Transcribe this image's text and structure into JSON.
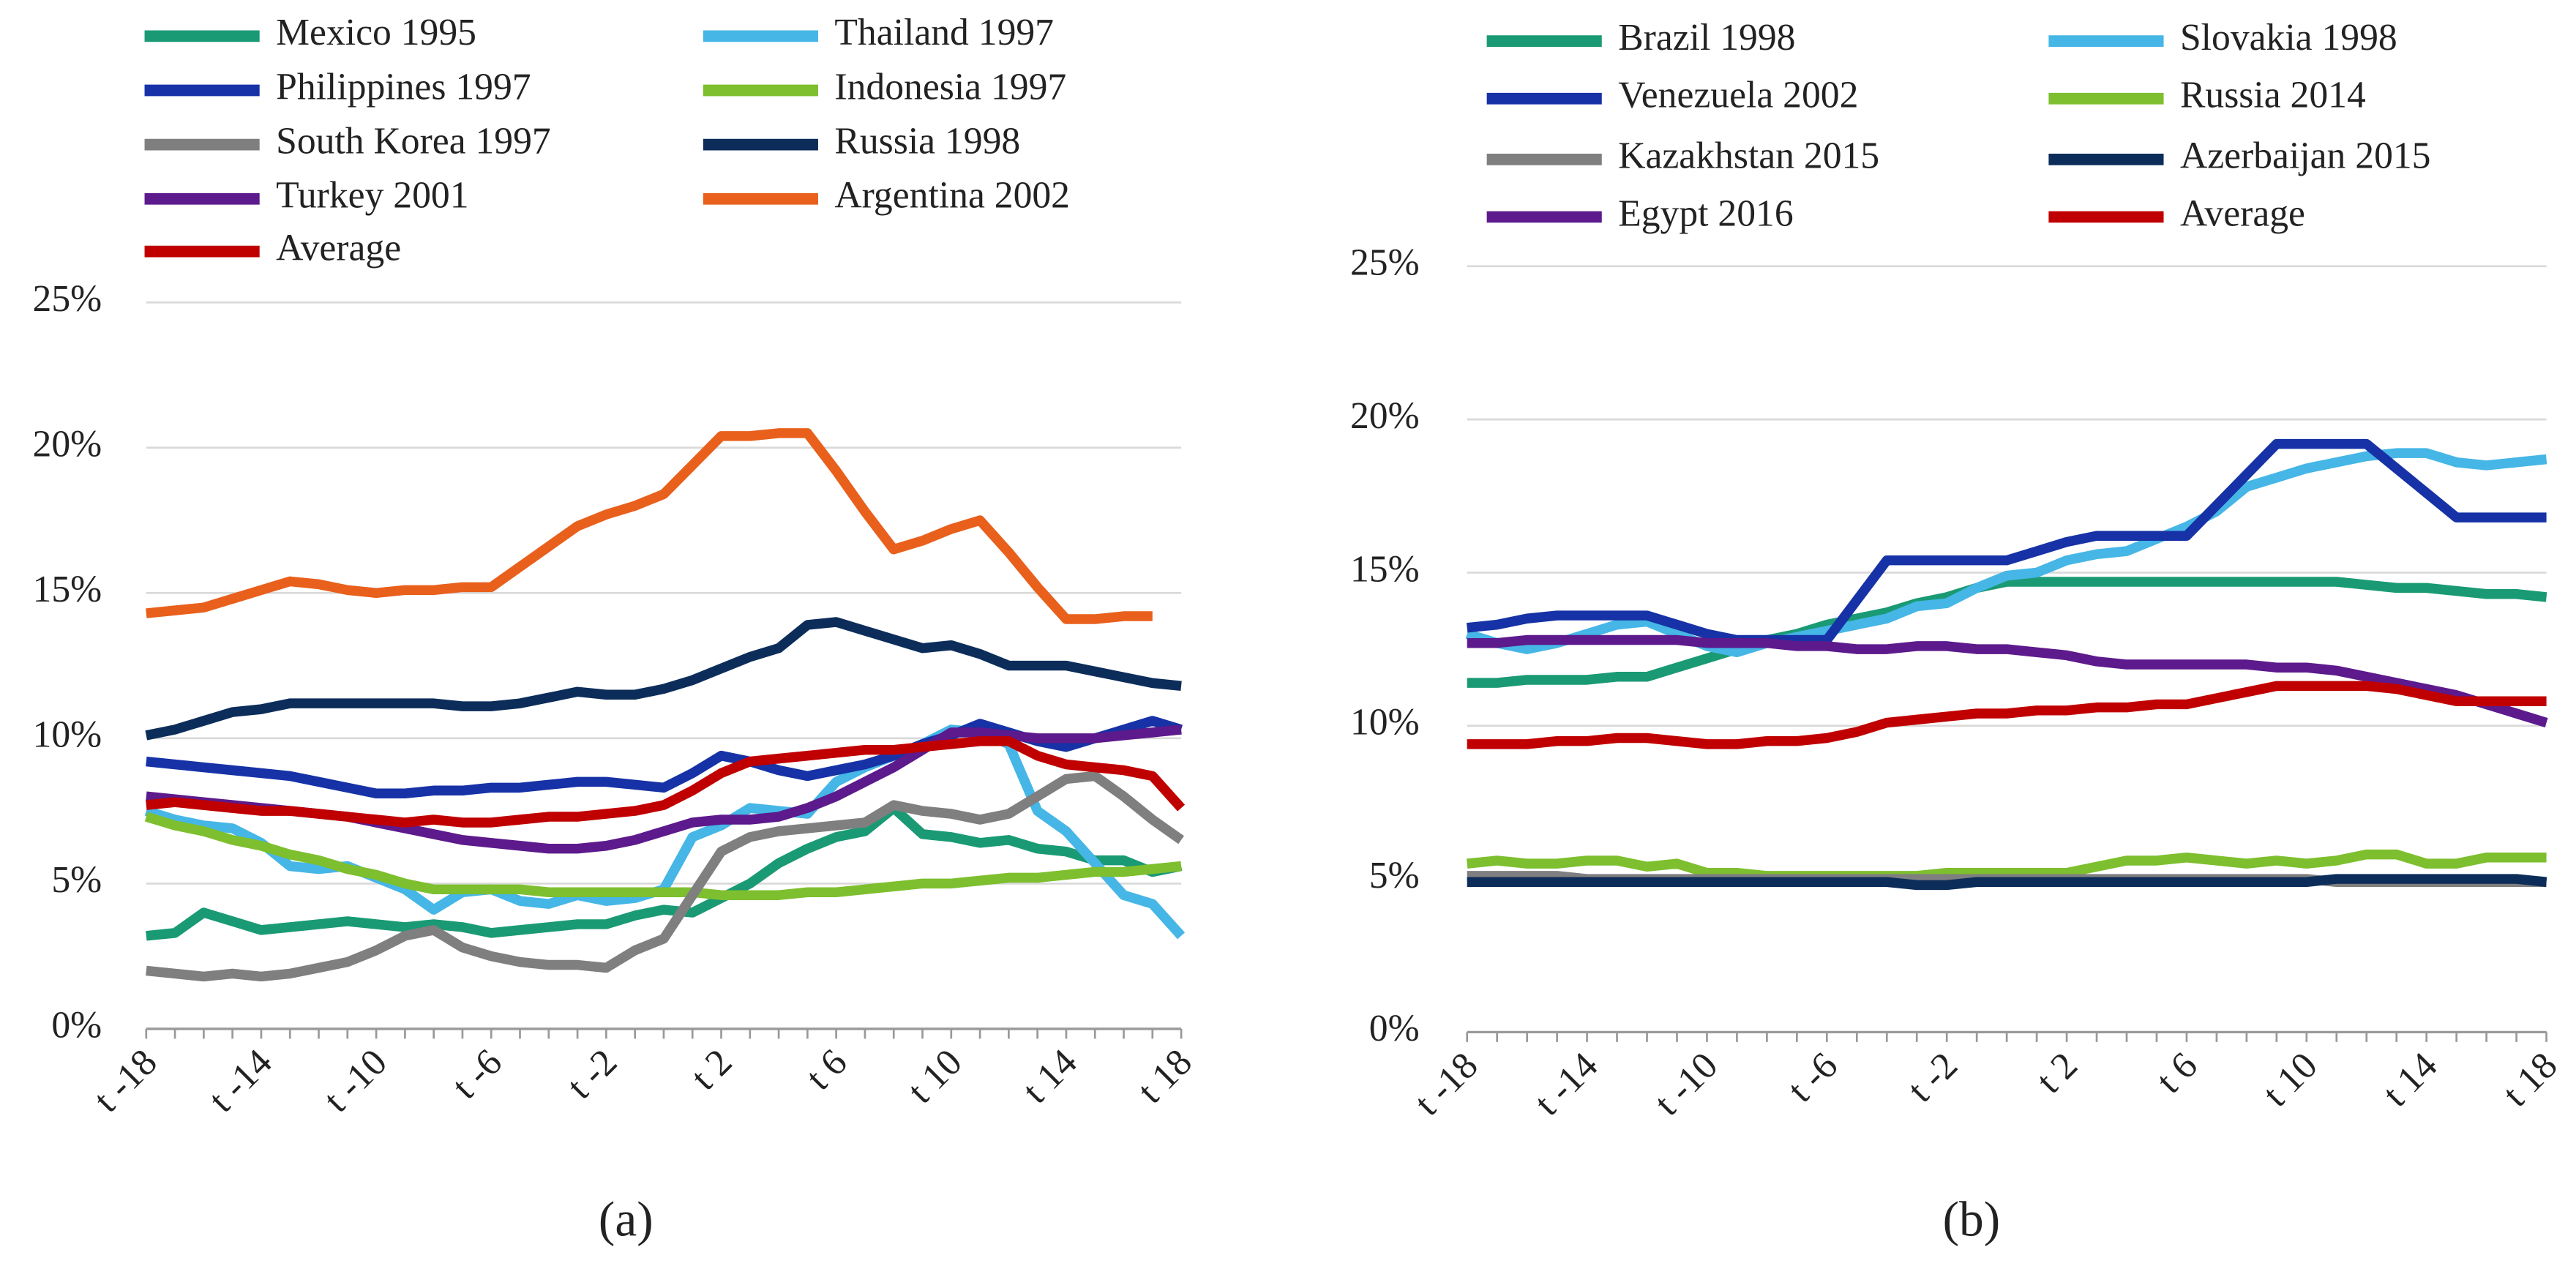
{
  "chart_data": [
    {
      "type": "line",
      "label": "(a)",
      "categories": [
        "t -18",
        null,
        null,
        null,
        "t -14",
        null,
        null,
        null,
        "t -10",
        null,
        null,
        null,
        "t -6",
        null,
        null,
        null,
        "t -2",
        null,
        null,
        null,
        "t 2",
        null,
        null,
        null,
        "t 6",
        null,
        null,
        null,
        "t 10",
        null,
        null,
        null,
        "t 14",
        null,
        null,
        null,
        "t 18"
      ],
      "ylim": [
        0,
        25
      ],
      "yticks": [
        {
          "value": 0,
          "label": "0%"
        },
        {
          "value": 5,
          "label": "5%"
        },
        {
          "value": 10,
          "label": "10%"
        },
        {
          "value": 15,
          "label": "15%"
        },
        {
          "value": 20,
          "label": "20%"
        },
        {
          "value": 25,
          "label": "25%"
        }
      ],
      "grid": true,
      "series": [
        {
          "name": "Mexico 1995",
          "color": "#1a9a74",
          "values": [
            3.2,
            3.3,
            4.0,
            3.7,
            3.4,
            3.5,
            3.6,
            3.7,
            3.6,
            3.5,
            3.6,
            3.5,
            3.3,
            3.4,
            3.5,
            3.6,
            3.6,
            3.9,
            4.1,
            4.0,
            4.5,
            5.0,
            5.7,
            6.2,
            6.6,
            6.8,
            7.6,
            6.7,
            6.6,
            6.4,
            6.5,
            6.2,
            6.1,
            5.8,
            5.8,
            5.4,
            5.6
          ]
        },
        {
          "name": "Thailand 1997",
          "color": "#45b6e6",
          "values": [
            7.5,
            7.2,
            7.0,
            6.9,
            6.4,
            5.6,
            5.5,
            5.6,
            5.2,
            4.8,
            4.1,
            4.7,
            4.8,
            4.4,
            4.3,
            4.6,
            4.4,
            4.5,
            4.8,
            6.6,
            7.0,
            7.6,
            7.5,
            7.4,
            8.5,
            9.0,
            9.4,
            9.8,
            10.3,
            10.2,
            9.8,
            7.5,
            6.8,
            5.7,
            4.6,
            4.3,
            3.2
          ]
        },
        {
          "name": "Philippines 1997",
          "color": "#1632a6",
          "values": [
            9.2,
            9.1,
            9.0,
            8.9,
            8.8,
            8.7,
            8.5,
            8.3,
            8.1,
            8.1,
            8.2,
            8.2,
            8.3,
            8.3,
            8.4,
            8.5,
            8.5,
            8.4,
            8.3,
            8.8,
            9.4,
            9.2,
            8.9,
            8.7,
            8.9,
            9.1,
            9.4,
            9.8,
            10.1,
            10.5,
            10.2,
            9.9,
            9.7,
            10.0,
            10.3,
            10.6,
            10.3
          ]
        },
        {
          "name": "Indonesia 1997",
          "color": "#7dbf2e",
          "values": [
            7.3,
            7.0,
            6.8,
            6.5,
            6.3,
            6.0,
            5.8,
            5.5,
            5.3,
            5.0,
            4.8,
            4.8,
            4.8,
            4.8,
            4.7,
            4.7,
            4.7,
            4.7,
            4.7,
            4.7,
            4.6,
            4.6,
            4.6,
            4.7,
            4.7,
            4.8,
            4.9,
            5.0,
            5.0,
            5.1,
            5.2,
            5.2,
            5.3,
            5.4,
            5.4,
            5.5,
            5.6
          ]
        },
        {
          "name": "South Korea 1997",
          "color": "#7f7f7f",
          "values": [
            2.0,
            1.9,
            1.8,
            1.9,
            1.8,
            1.9,
            2.1,
            2.3,
            2.7,
            3.2,
            3.4,
            2.8,
            2.5,
            2.3,
            2.2,
            2.2,
            2.1,
            2.7,
            3.1,
            4.6,
            6.1,
            6.6,
            6.8,
            6.9,
            7.0,
            7.1,
            7.7,
            7.5,
            7.4,
            7.2,
            7.4,
            8.0,
            8.6,
            8.7,
            8.0,
            7.2,
            6.5
          ]
        },
        {
          "name": "Russia 1998",
          "color": "#0c2d5a",
          "values": [
            10.1,
            10.3,
            10.6,
            10.9,
            11.0,
            11.2,
            11.2,
            11.2,
            11.2,
            11.2,
            11.2,
            11.1,
            11.1,
            11.2,
            11.4,
            11.6,
            11.5,
            11.5,
            11.7,
            12.0,
            12.4,
            12.8,
            13.1,
            13.9,
            14.0,
            13.7,
            13.4,
            13.1,
            13.2,
            12.9,
            12.5,
            12.5,
            12.5,
            12.3,
            12.1,
            11.9,
            11.8
          ]
        },
        {
          "name": "Turkey 2001",
          "color": "#5c1a8c",
          "values": [
            8.0,
            7.9,
            7.8,
            7.7,
            7.6,
            7.5,
            7.4,
            7.3,
            7.1,
            6.9,
            6.7,
            6.5,
            6.4,
            6.3,
            6.2,
            6.2,
            6.3,
            6.5,
            6.8,
            7.1,
            7.2,
            7.2,
            7.3,
            7.6,
            8.0,
            8.5,
            9.0,
            9.6,
            10.2,
            10.2,
            10.1,
            10.0,
            10.0,
            10.0,
            10.1,
            10.2,
            10.3
          ]
        },
        {
          "name": "Argentina 2002",
          "color": "#e8601c",
          "values": [
            14.3,
            14.4,
            14.5,
            14.8,
            15.1,
            15.4,
            15.3,
            15.1,
            15.0,
            15.1,
            15.1,
            15.2,
            15.2,
            15.9,
            16.6,
            17.3,
            17.7,
            18.0,
            18.4,
            19.4,
            20.4,
            20.4,
            20.5,
            20.5,
            19.2,
            17.8,
            16.5,
            16.8,
            17.2,
            17.5,
            16.4,
            15.2,
            14.1,
            14.1,
            14.2,
            14.2,
            null
          ]
        },
        {
          "name": "Average",
          "color": "#c00000",
          "values": [
            7.7,
            7.8,
            7.7,
            7.6,
            7.5,
            7.5,
            7.4,
            7.3,
            7.2,
            7.1,
            7.2,
            7.1,
            7.1,
            7.2,
            7.3,
            7.3,
            7.4,
            7.5,
            7.7,
            8.2,
            8.8,
            9.2,
            9.3,
            9.4,
            9.5,
            9.6,
            9.6,
            9.7,
            9.8,
            9.9,
            9.9,
            9.4,
            9.1,
            9.0,
            8.9,
            8.7,
            7.6
          ]
        }
      ]
    },
    {
      "type": "line",
      "label": "(b)",
      "categories": [
        "t -18",
        null,
        null,
        null,
        "t -14",
        null,
        null,
        null,
        "t -10",
        null,
        null,
        null,
        "t -6",
        null,
        null,
        null,
        "t -2",
        null,
        null,
        null,
        "t 2",
        null,
        null,
        null,
        "t 6",
        null,
        null,
        null,
        "t 10",
        null,
        null,
        null,
        "t 14",
        null,
        null,
        null,
        "t 18"
      ],
      "ylim": [
        0,
        25
      ],
      "yticks": [
        {
          "value": 0,
          "label": "0%"
        },
        {
          "value": 5,
          "label": "5%"
        },
        {
          "value": 10,
          "label": "10%"
        },
        {
          "value": 15,
          "label": "15%"
        },
        {
          "value": 20,
          "label": "20%"
        },
        {
          "value": 25,
          "label": "25%"
        }
      ],
      "grid": true,
      "series": [
        {
          "name": "Brazil 1998",
          "color": "#1a9a74",
          "values": [
            11.4,
            11.4,
            11.5,
            11.5,
            11.5,
            11.6,
            11.6,
            11.9,
            12.2,
            12.5,
            12.8,
            13.0,
            13.3,
            13.5,
            13.7,
            14.0,
            14.2,
            14.5,
            14.7,
            14.7,
            14.7,
            14.7,
            14.7,
            14.7,
            14.7,
            14.7,
            14.7,
            14.7,
            14.7,
            14.7,
            14.6,
            14.5,
            14.5,
            14.4,
            14.3,
            14.3,
            14.2
          ]
        },
        {
          "name": "Slovakia 1998",
          "color": "#45b6e6",
          "values": [
            13.0,
            12.7,
            12.5,
            12.7,
            13.0,
            13.3,
            13.4,
            13.0,
            12.6,
            12.4,
            12.7,
            12.9,
            13.1,
            13.3,
            13.5,
            13.9,
            14.0,
            14.5,
            14.9,
            15.0,
            15.4,
            15.6,
            15.7,
            16.1,
            16.5,
            17.0,
            17.8,
            18.1,
            18.4,
            18.6,
            18.8,
            18.9,
            18.9,
            18.6,
            18.5,
            18.6,
            18.7
          ]
        },
        {
          "name": "Venezuela 2002",
          "color": "#1632a6",
          "values": [
            13.2,
            13.3,
            13.5,
            13.6,
            13.6,
            13.6,
            13.6,
            13.3,
            13.0,
            12.8,
            12.8,
            12.8,
            12.8,
            14.1,
            15.4,
            15.4,
            15.4,
            15.4,
            15.4,
            15.7,
            16.0,
            16.2,
            16.2,
            16.2,
            16.2,
            17.2,
            18.2,
            19.2,
            19.2,
            19.2,
            19.2,
            18.4,
            17.6,
            16.8,
            16.8,
            16.8,
            16.8
          ]
        },
        {
          "name": "Russia 2014",
          "color": "#7dbf2e",
          "values": [
            5.5,
            5.6,
            5.5,
            5.5,
            5.6,
            5.6,
            5.4,
            5.5,
            5.2,
            5.2,
            5.1,
            5.1,
            5.1,
            5.1,
            5.1,
            5.1,
            5.2,
            5.2,
            5.2,
            5.2,
            5.2,
            5.4,
            5.6,
            5.6,
            5.7,
            5.6,
            5.5,
            5.6,
            5.5,
            5.6,
            5.8,
            5.8,
            5.5,
            5.5,
            5.7,
            5.7,
            5.7
          ]
        },
        {
          "name": "Kazakhstan 2015",
          "color": "#7f7f7f",
          "values": [
            5.1,
            5.1,
            5.1,
            5.1,
            5.0,
            5.0,
            5.0,
            5.0,
            5.0,
            5.0,
            5.0,
            5.0,
            5.0,
            5.0,
            5.0,
            5.0,
            5.0,
            5.0,
            5.0,
            5.0,
            5.0,
            5.0,
            5.0,
            5.0,
            5.0,
            5.0,
            5.0,
            5.0,
            5.0,
            4.9,
            4.9,
            4.9,
            4.9,
            4.9,
            4.9,
            4.9,
            4.9
          ]
        },
        {
          "name": "Azerbaijan 2015",
          "color": "#0c2d5a",
          "values": [
            4.9,
            4.9,
            4.9,
            4.9,
            4.9,
            4.9,
            4.9,
            4.9,
            4.9,
            4.9,
            4.9,
            4.9,
            4.9,
            4.9,
            4.9,
            4.8,
            4.8,
            4.9,
            4.9,
            4.9,
            4.9,
            4.9,
            4.9,
            4.9,
            4.9,
            4.9,
            4.9,
            4.9,
            4.9,
            5.0,
            5.0,
            5.0,
            5.0,
            5.0,
            5.0,
            5.0,
            4.9
          ]
        },
        {
          "name": "Egypt 2016",
          "color": "#5c1a8c",
          "values": [
            12.7,
            12.7,
            12.8,
            12.8,
            12.8,
            12.8,
            12.8,
            12.8,
            12.7,
            12.7,
            12.7,
            12.6,
            12.6,
            12.5,
            12.5,
            12.6,
            12.6,
            12.5,
            12.5,
            12.4,
            12.3,
            12.1,
            12.0,
            12.0,
            12.0,
            12.0,
            12.0,
            11.9,
            11.9,
            11.8,
            11.6,
            11.4,
            11.2,
            11.0,
            10.7,
            10.4,
            10.1
          ]
        },
        {
          "name": "Average",
          "color": "#c00000",
          "values": [
            9.4,
            9.4,
            9.4,
            9.5,
            9.5,
            9.6,
            9.6,
            9.5,
            9.4,
            9.4,
            9.5,
            9.5,
            9.6,
            9.8,
            10.1,
            10.2,
            10.3,
            10.4,
            10.4,
            10.5,
            10.5,
            10.6,
            10.6,
            10.7,
            10.7,
            10.9,
            11.1,
            11.3,
            11.3,
            11.3,
            11.3,
            11.2,
            11.0,
            10.8,
            10.8,
            10.8,
            10.8
          ]
        }
      ]
    }
  ]
}
